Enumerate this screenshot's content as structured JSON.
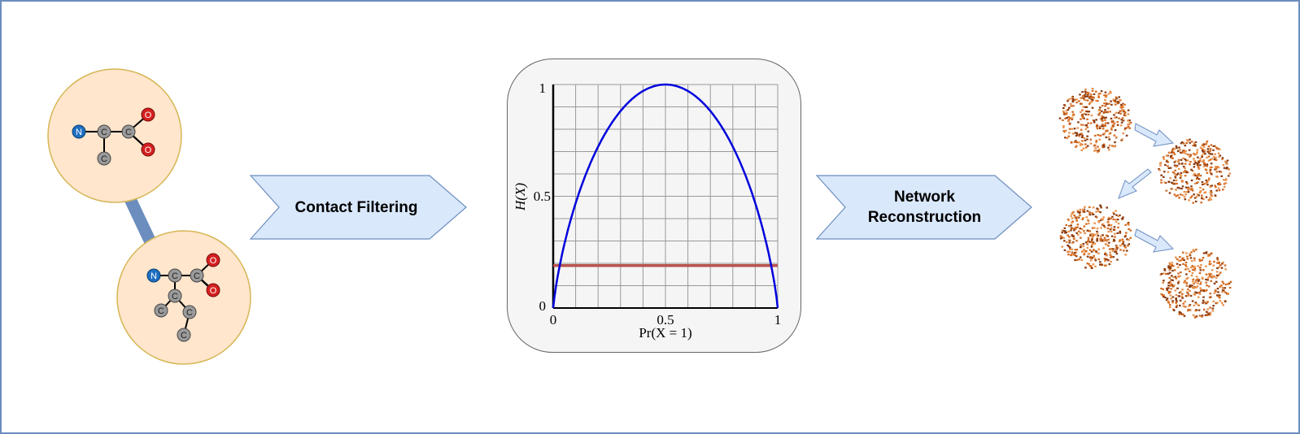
{
  "frame": {
    "border_color": "#6c8ebf"
  },
  "molecule_1": {
    "fill": "#ffe6cc",
    "stroke": "#d6b656",
    "atoms": [
      "N",
      "C",
      "C",
      "C",
      "O",
      "O"
    ]
  },
  "molecule_2": {
    "fill": "#ffe6cc",
    "stroke": "#d6b656",
    "atoms": [
      "N",
      "C",
      "C",
      "O",
      "O",
      "C",
      "C",
      "C",
      "C"
    ]
  },
  "connector": {
    "color": "#6c8ebf"
  },
  "arrow_1": {
    "label": "Contact Filtering",
    "fill": "#dae8fc",
    "stroke": "#6c8ebf"
  },
  "arrow_2": {
    "label_line1": "Network",
    "label_line2": "Reconstruction",
    "fill": "#dae8fc",
    "stroke": "#6c8ebf"
  },
  "chart_data": {
    "type": "line",
    "xlabel": "Pr(X = 1)",
    "ylabel": "H(X)",
    "xlim": [
      0,
      1
    ],
    "ylim": [
      0,
      1
    ],
    "x_ticks": [
      "0",
      "0.5",
      "1"
    ],
    "y_ticks": [
      "0",
      "0.5",
      "1"
    ],
    "grid": true,
    "series": [
      {
        "kind": "binary-entropy",
        "color": "#0000dd",
        "x": [
          0,
          0.05,
          0.1,
          0.15,
          0.2,
          0.25,
          0.3,
          0.35,
          0.4,
          0.45,
          0.5,
          0.55,
          0.6,
          0.65,
          0.7,
          0.75,
          0.8,
          0.85,
          0.9,
          0.95,
          1
        ],
        "y": [
          0,
          0.286,
          0.469,
          0.61,
          0.722,
          0.811,
          0.881,
          0.934,
          0.971,
          0.993,
          1,
          0.993,
          0.971,
          0.934,
          0.881,
          0.811,
          0.722,
          0.61,
          0.469,
          0.286,
          0
        ]
      },
      {
        "kind": "threshold",
        "color": "#b85450",
        "y_value": 0.19
      }
    ]
  },
  "networks": {
    "node_color": "#d2691e",
    "arrow_fill": "#dae8fc",
    "arrow_stroke": "#6c8ebf"
  }
}
